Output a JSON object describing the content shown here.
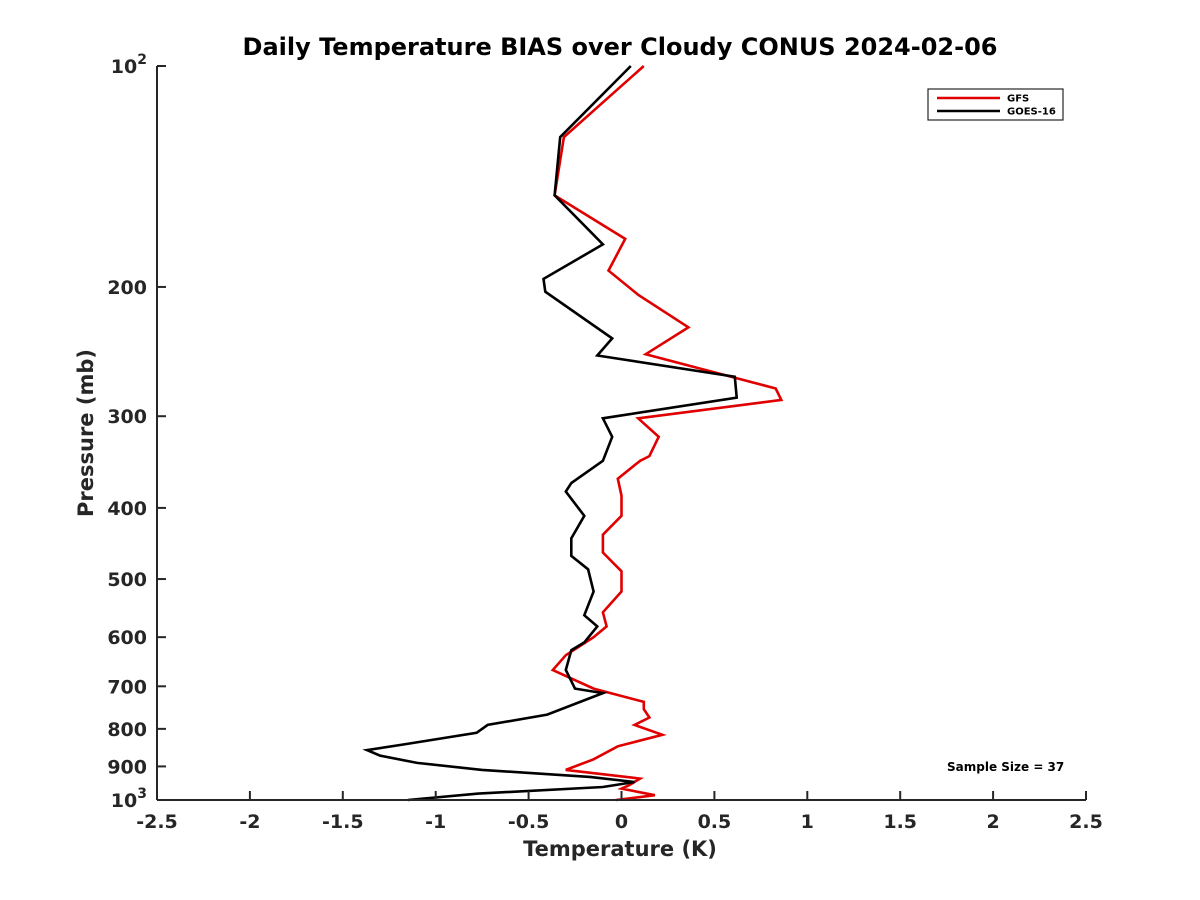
{
  "chart_data": {
    "type": "line",
    "title": "Daily Temperature BIAS over Cloudy CONUS 2024-02-06",
    "xlabel": "Temperature (K)",
    "ylabel": "Pressure (mb)",
    "xlim": [
      -2.5,
      2.5
    ],
    "ylim": [
      100,
      1000
    ],
    "y_scale": "log",
    "y_reversed": true,
    "grid": false,
    "legend_position": "top-right",
    "x_ticks": [
      "-2.5",
      "-2",
      "-1.5",
      "-1",
      "-0.5",
      "0",
      "0.5",
      "1",
      "1.5",
      "2",
      "2.5"
    ],
    "x_tick_values": [
      -2.5,
      -2,
      -1.5,
      -1,
      -0.5,
      0,
      0.5,
      1,
      1.5,
      2,
      2.5
    ],
    "y_ticks": [
      {
        "value": 100,
        "base": "10",
        "exp": "2"
      },
      {
        "value": 200,
        "label": "200"
      },
      {
        "value": 300,
        "label": "300"
      },
      {
        "value": 400,
        "label": "400"
      },
      {
        "value": 500,
        "label": "500"
      },
      {
        "value": 600,
        "label": "600"
      },
      {
        "value": 700,
        "label": "700"
      },
      {
        "value": 800,
        "label": "800"
      },
      {
        "value": 900,
        "label": "900"
      },
      {
        "value": 1000,
        "base": "10",
        "exp": "3"
      }
    ],
    "annotation": "Sample Size = 37",
    "series": [
      {
        "name": "GFS",
        "color": "#e00000",
        "points": [
          [
            0.12,
            100
          ],
          [
            -0.31,
            125
          ],
          [
            -0.36,
            150
          ],
          [
            0.02,
            172
          ],
          [
            -0.07,
            190
          ],
          [
            0.09,
            205
          ],
          [
            0.36,
            227
          ],
          [
            0.13,
            247
          ],
          [
            0.83,
            275
          ],
          [
            0.86,
            285
          ],
          [
            0.09,
            302
          ],
          [
            0.2,
            320
          ],
          [
            0.15,
            340
          ],
          [
            0.1,
            345
          ],
          [
            -0.02,
            365
          ],
          [
            0.0,
            385
          ],
          [
            0.0,
            410
          ],
          [
            -0.1,
            435
          ],
          [
            -0.1,
            460
          ],
          [
            0.0,
            488
          ],
          [
            0.0,
            520
          ],
          [
            -0.1,
            555
          ],
          [
            -0.08,
            580
          ],
          [
            -0.15,
            600
          ],
          [
            -0.3,
            635
          ],
          [
            -0.37,
            665
          ],
          [
            -0.15,
            705
          ],
          [
            0.12,
            735
          ],
          [
            0.12,
            752
          ],
          [
            0.15,
            772
          ],
          [
            0.07,
            790
          ],
          [
            0.22,
            815
          ],
          [
            -0.02,
            845
          ],
          [
            -0.15,
            880
          ],
          [
            -0.3,
            910
          ],
          [
            0.1,
            935
          ],
          [
            0.04,
            955
          ],
          [
            0.0,
            965
          ],
          [
            0.18,
            985
          ],
          [
            -0.03,
            1000
          ]
        ]
      },
      {
        "name": "GOES-16",
        "color": "#000000",
        "points": [
          [
            0.05,
            100
          ],
          [
            -0.33,
            125
          ],
          [
            -0.36,
            150
          ],
          [
            -0.1,
            175
          ],
          [
            -0.42,
            195
          ],
          [
            -0.41,
            203
          ],
          [
            -0.05,
            235
          ],
          [
            -0.13,
            248
          ],
          [
            0.61,
            265
          ],
          [
            0.62,
            283
          ],
          [
            -0.1,
            302
          ],
          [
            -0.05,
            320
          ],
          [
            -0.1,
            345
          ],
          [
            -0.27,
            370
          ],
          [
            -0.3,
            380
          ],
          [
            -0.2,
            410
          ],
          [
            -0.27,
            440
          ],
          [
            -0.27,
            465
          ],
          [
            -0.18,
            485
          ],
          [
            -0.15,
            520
          ],
          [
            -0.2,
            560
          ],
          [
            -0.13,
            580
          ],
          [
            -0.2,
            610
          ],
          [
            -0.27,
            625
          ],
          [
            -0.3,
            665
          ],
          [
            -0.25,
            705
          ],
          [
            -0.1,
            715
          ],
          [
            -0.4,
            765
          ],
          [
            -0.72,
            790
          ],
          [
            -0.78,
            810
          ],
          [
            -1.17,
            840
          ],
          [
            -1.37,
            855
          ],
          [
            -1.3,
            870
          ],
          [
            -1.1,
            890
          ],
          [
            -0.75,
            910
          ],
          [
            -0.17,
            930
          ],
          [
            0.07,
            945
          ],
          [
            -0.1,
            960
          ],
          [
            -0.77,
            980
          ],
          [
            -1.15,
            1000
          ]
        ]
      }
    ]
  }
}
